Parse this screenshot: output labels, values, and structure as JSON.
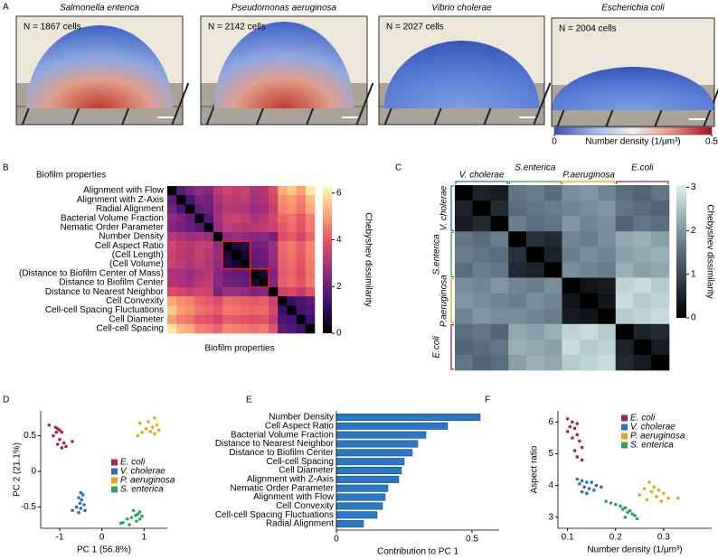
{
  "panel_labels": [
    "A",
    "B",
    "C",
    "D",
    "E",
    "F"
  ],
  "panel_a": {
    "images": [
      {
        "title": "Salmonella enterica",
        "count_label": "N = 1867 cells"
      },
      {
        "title": "Pseudomonas aeruginosa",
        "count_label": "N = 2142 cells"
      },
      {
        "title": "Vibrio cholerae",
        "count_label": "N = 2027 cells"
      },
      {
        "title": "Escherichia coli",
        "count_label": "N = 2004 cells"
      }
    ],
    "colorbar": {
      "label": "Number density (1/µm³)",
      "lim": [
        0,
        0.5
      ],
      "ticks": [
        0,
        0.5
      ],
      "colors": [
        "#3b4cc0",
        "#9db6e8",
        "#f2f0ee",
        "#e8917a",
        "#b40426"
      ]
    }
  },
  "chart_data": [
    {
      "type": "heatmap",
      "title": "Biofilm properties",
      "xlabel": "Biofilm properties",
      "categories": [
        "Alignment with Flow",
        "Alignment with Z-Axis",
        "Radial Alignment",
        "Bacterial Volume Fraction",
        "Nematic Order Parameter",
        "Number Density",
        "Cell Aspect Ratio",
        "(Cell Length)",
        "(Cell Volume)",
        "(Distance to Biofilm Center of Mass)",
        "Distance to Biofilm Center",
        "Distance to Nearest Neighbor",
        "Cell Convexity",
        "Cell-cell Spacing Fluctuations",
        "Cell Diameter",
        "Cell-cell Spacing"
      ],
      "matrix": [
        [
          0,
          1.8,
          2.2,
          2.6,
          2.4,
          3.2,
          3.6,
          3.4,
          3.5,
          3.0,
          3.1,
          3.8,
          5.2,
          5.6,
          5.0,
          6.0
        ],
        [
          1.8,
          0,
          1.5,
          2.3,
          2.1,
          3.0,
          3.3,
          3.2,
          3.3,
          2.9,
          3.0,
          3.6,
          4.8,
          5.0,
          4.6,
          5.4
        ],
        [
          2.2,
          1.5,
          0,
          1.9,
          2.0,
          2.8,
          3.2,
          3.1,
          3.1,
          2.7,
          2.8,
          3.4,
          4.6,
          4.8,
          4.4,
          5.2
        ],
        [
          2.6,
          2.3,
          1.9,
          0,
          1.7,
          2.9,
          3.4,
          3.5,
          3.4,
          3.0,
          3.2,
          3.6,
          4.2,
          4.4,
          4.0,
          4.6
        ],
        [
          2.4,
          2.1,
          2.0,
          1.7,
          0,
          2.7,
          3.3,
          3.2,
          3.1,
          3.2,
          3.3,
          3.5,
          4.0,
          4.3,
          3.9,
          4.5
        ],
        [
          3.2,
          3.0,
          2.8,
          2.9,
          2.7,
          0,
          2.6,
          2.7,
          2.5,
          2.4,
          2.5,
          2.2,
          3.8,
          4.0,
          3.6,
          4.2
        ],
        [
          3.6,
          3.3,
          3.2,
          3.4,
          3.3,
          2.6,
          0,
          0.6,
          0.8,
          2.0,
          2.1,
          2.8,
          4.3,
          4.5,
          4.1,
          4.7
        ],
        [
          3.4,
          3.2,
          3.1,
          3.5,
          3.2,
          2.7,
          0.6,
          0,
          0.5,
          1.9,
          2.0,
          2.7,
          4.2,
          4.4,
          4.0,
          4.6
        ],
        [
          3.5,
          3.3,
          3.1,
          3.4,
          3.1,
          2.5,
          0.8,
          0.5,
          0,
          1.8,
          1.9,
          2.6,
          4.1,
          4.3,
          3.9,
          4.5
        ],
        [
          3.0,
          2.9,
          2.7,
          3.0,
          3.2,
          2.4,
          2.0,
          1.9,
          1.8,
          0,
          0.5,
          2.3,
          4.0,
          4.2,
          3.8,
          4.4
        ],
        [
          3.1,
          3.0,
          2.8,
          3.2,
          3.3,
          2.5,
          2.1,
          2.0,
          1.9,
          0.5,
          0,
          2.4,
          4.1,
          4.3,
          3.9,
          4.5
        ],
        [
          3.8,
          3.6,
          3.4,
          3.6,
          3.5,
          2.2,
          2.8,
          2.7,
          2.6,
          2.3,
          2.4,
          0,
          3.5,
          3.7,
          3.3,
          3.9
        ],
        [
          5.2,
          4.8,
          4.6,
          4.2,
          4.0,
          3.8,
          4.3,
          4.2,
          4.1,
          4.0,
          4.1,
          3.5,
          0,
          1.2,
          1.5,
          1.8
        ],
        [
          5.6,
          5.0,
          4.8,
          4.4,
          4.3,
          4.0,
          4.5,
          4.4,
          4.3,
          4.2,
          4.3,
          3.7,
          1.2,
          0,
          1.4,
          1.6
        ],
        [
          5.0,
          4.6,
          4.4,
          4.0,
          3.9,
          3.6,
          4.1,
          4.0,
          3.9,
          3.8,
          3.9,
          3.3,
          1.5,
          1.4,
          0,
          1.3
        ],
        [
          6.0,
          5.4,
          5.2,
          4.6,
          4.5,
          4.2,
          4.7,
          4.6,
          4.5,
          4.4,
          4.5,
          3.9,
          1.8,
          1.6,
          1.3,
          0
        ]
      ],
      "clim": [
        0,
        6.3
      ],
      "cticks": [
        0,
        2,
        4,
        6
      ],
      "colorbar_label": "Chebyshev dissimilarity",
      "colormap": [
        "#000004",
        "#3b0f70",
        "#8c2981",
        "#de4968",
        "#fe9f6d",
        "#fcfdbf"
      ]
    },
    {
      "type": "heatmap",
      "groups": [
        {
          "name": "V. cholerae",
          "color": "#2f6bbf"
        },
        {
          "name": "S.enterica",
          "color": "#2ca652"
        },
        {
          "name": "P.aeruginosa",
          "color": "#e6a817"
        },
        {
          "name": "E.coli",
          "color": "#a8235a"
        }
      ],
      "matrix": [
        [
          0,
          0.5,
          0.4,
          1.6,
          1.7,
          1.5,
          1.9,
          2.0,
          1.8,
          1.5,
          1.4,
          1.6
        ],
        [
          0.5,
          0,
          0.6,
          1.5,
          1.6,
          1.7,
          1.8,
          1.9,
          2.0,
          1.6,
          1.5,
          1.4
        ],
        [
          0.4,
          0.6,
          0,
          1.7,
          1.5,
          1.6,
          2.0,
          1.8,
          1.9,
          1.4,
          1.6,
          1.5
        ],
        [
          1.6,
          1.5,
          1.7,
          0,
          0.7,
          0.6,
          1.8,
          1.7,
          1.9,
          2.2,
          2.3,
          2.1
        ],
        [
          1.7,
          1.6,
          1.5,
          0.7,
          0,
          0.5,
          1.7,
          1.9,
          1.8,
          2.1,
          2.2,
          2.3
        ],
        [
          1.5,
          1.7,
          1.6,
          0.6,
          0.5,
          0,
          1.9,
          1.8,
          1.7,
          2.3,
          2.1,
          2.2
        ],
        [
          1.9,
          1.8,
          2.0,
          1.8,
          1.7,
          1.9,
          0,
          0.3,
          0.4,
          2.7,
          2.8,
          2.6
        ],
        [
          2.0,
          1.9,
          1.8,
          1.7,
          1.9,
          1.8,
          0.3,
          0,
          0.3,
          2.8,
          2.6,
          2.7
        ],
        [
          1.8,
          2.0,
          1.9,
          1.9,
          1.8,
          1.7,
          0.4,
          0.3,
          0,
          2.6,
          2.7,
          2.8
        ],
        [
          1.5,
          1.6,
          1.4,
          2.2,
          2.1,
          2.3,
          2.7,
          2.8,
          2.6,
          0,
          0.5,
          0.6
        ],
        [
          1.4,
          1.5,
          1.6,
          2.3,
          2.2,
          2.1,
          2.8,
          2.6,
          2.7,
          0.5,
          0,
          0.4
        ],
        [
          1.6,
          1.4,
          1.5,
          2.1,
          2.3,
          2.2,
          2.6,
          2.7,
          2.8,
          0.6,
          0.4,
          0
        ]
      ],
      "clim": [
        0,
        3.05
      ],
      "cticks": [
        0,
        1,
        2,
        3
      ],
      "colorbar_label": "Chebyshev dissimilarity",
      "colormap": [
        "#000000",
        "#2a3440",
        "#5a6f7f",
        "#97b0b8",
        "#dcf0f0"
      ]
    },
    {
      "type": "scatter",
      "xlabel": "PC 1 (56.8%)",
      "ylabel": "PC 2 (21.1%)",
      "xlim": [
        -1.45,
        1.55
      ],
      "ylim": [
        -0.8,
        0.85
      ],
      "xticks": [
        -1,
        0,
        1
      ],
      "yticks": [
        -0.5,
        0,
        0.5
      ],
      "legend": "center right",
      "series": [
        {
          "name": "E. coli",
          "color": "#a8235a",
          "x": [
            -1.25,
            -1.1,
            -1.05,
            -1.0,
            -1.08,
            -0.95,
            -1.15,
            -1.0,
            -0.9,
            -1.05,
            -0.85,
            -0.95,
            -0.7
          ],
          "values": [
            0.65,
            0.62,
            0.6,
            0.58,
            0.55,
            0.55,
            0.5,
            0.45,
            0.4,
            0.38,
            0.35,
            0.33,
            0.42
          ]
        },
        {
          "name": "V. cholerae",
          "color": "#2f6bbf",
          "x": [
            -0.5,
            -0.45,
            -0.55,
            -0.48,
            -0.52,
            -0.42,
            -0.6,
            -0.5,
            -0.4,
            -0.7,
            -0.55
          ],
          "values": [
            -0.3,
            -0.33,
            -0.37,
            -0.4,
            -0.45,
            -0.47,
            -0.5,
            -0.52,
            -0.55,
            -0.55,
            -0.58
          ]
        },
        {
          "name": "P. aeruginosa",
          "color": "#e6a817",
          "x": [
            1.25,
            1.1,
            0.9,
            1.3,
            1.2,
            1.05,
            1.35,
            1.15,
            0.95,
            1.25,
            0.85
          ],
          "values": [
            0.75,
            0.7,
            0.68,
            0.65,
            0.62,
            0.6,
            0.58,
            0.56,
            0.55,
            0.53,
            0.5
          ]
        },
        {
          "name": "S. enterica",
          "color": "#2ca652",
          "x": [
            0.75,
            0.9,
            0.85,
            0.8,
            0.95,
            0.7,
            0.6,
            0.9,
            0.82,
            0.5,
            0.45,
            0.65
          ],
          "values": [
            -0.55,
            -0.57,
            -0.6,
            -0.62,
            -0.63,
            -0.65,
            -0.67,
            -0.67,
            -0.7,
            -0.72,
            -0.73,
            -0.75
          ]
        }
      ]
    },
    {
      "type": "hbar",
      "xlabel": "Contribution to PC 1",
      "xlim": [
        0,
        0.6
      ],
      "xticks": [
        0,
        0.5
      ],
      "color": "#2878c8",
      "categories": [
        "Number Density",
        "Cell Aspect Ratio",
        "Bacterial Volume Fraction",
        "Distance to Nearest Neighbor",
        "Distance to Biofilm Center",
        "Cell-cell Spacing",
        "Cell Diameter",
        "Alignment with Z-Axis",
        "Nematic Order Parameter",
        "Alignment with Flow",
        "Cell Convexity",
        "Cell-cell Spacing Fluctuations",
        "Radial Alignment"
      ],
      "values": [
        0.53,
        0.41,
        0.33,
        0.3,
        0.28,
        0.25,
        0.24,
        0.23,
        0.19,
        0.18,
        0.17,
        0.15,
        0.1
      ],
      "label_colors": [
        "#e0211e",
        "#e0211e",
        "#000000",
        "#000000",
        "#000000",
        "#000000",
        "#000000",
        "#000000",
        "#000000",
        "#000000",
        "#000000",
        "#000000",
        "#000000"
      ]
    },
    {
      "type": "scatter",
      "xlabel": "Number density (1/µm³)",
      "ylabel": "Aspect ratio",
      "xlim": [
        0.08,
        0.4
      ],
      "ylim": [
        2.65,
        6.35
      ],
      "xticks": [
        0.1,
        0.2,
        0.3
      ],
      "yticks": [
        3,
        4,
        5,
        6
      ],
      "legend": "upper right",
      "series": [
        {
          "name": "E. coli",
          "color": "#a8235a",
          "x": [
            0.1,
            0.11,
            0.12,
            0.105,
            0.115,
            0.1,
            0.12,
            0.11,
            0.125,
            0.13,
            0.115,
            0.12,
            0.13
          ],
          "values": [
            6.1,
            6.0,
            5.95,
            5.85,
            5.8,
            5.7,
            5.6,
            5.5,
            5.4,
            5.2,
            5.1,
            4.9,
            4.8
          ]
        },
        {
          "name": "V. cholerae",
          "color": "#2f6bbf",
          "x": [
            0.12,
            0.13,
            0.14,
            0.125,
            0.15,
            0.135,
            0.16,
            0.145,
            0.155,
            0.17,
            0.14,
            0.13
          ],
          "values": [
            4.2,
            4.15,
            4.1,
            4.05,
            4.1,
            3.95,
            4.0,
            3.9,
            3.85,
            3.95,
            3.75,
            3.8
          ]
        },
        {
          "name": "P. aeruginosa",
          "color": "#e6a817",
          "x": [
            0.27,
            0.28,
            0.26,
            0.29,
            0.275,
            0.3,
            0.25,
            0.285,
            0.31,
            0.33,
            0.265,
            0.295
          ],
          "values": [
            4.1,
            3.95,
            3.9,
            3.85,
            3.8,
            3.75,
            3.7,
            3.65,
            3.6,
            3.6,
            3.55,
            3.5
          ]
        },
        {
          "name": "S. enterica",
          "color": "#2ca652",
          "x": [
            0.18,
            0.19,
            0.2,
            0.21,
            0.22,
            0.215,
            0.23,
            0.225,
            0.235,
            0.24,
            0.22,
            0.245
          ],
          "values": [
            3.5,
            3.45,
            3.4,
            3.35,
            3.3,
            3.25,
            3.2,
            3.15,
            3.1,
            3.05,
            3.0,
            2.95
          ]
        }
      ]
    }
  ]
}
